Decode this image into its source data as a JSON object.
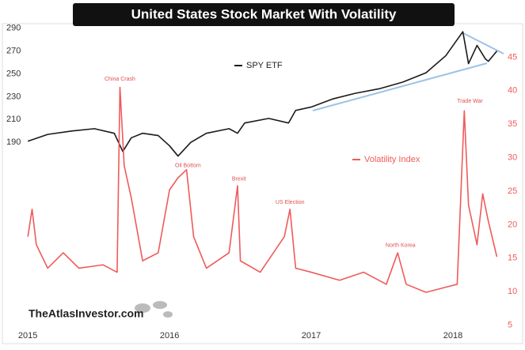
{
  "chart_data": {
    "type": "line",
    "title": "United States Stock Market With Volatility",
    "watermark": "TheAtlasInvestor.com",
    "xlim": [
      2014.96,
      2018.38
    ],
    "xticks": [
      2015,
      2016,
      2017,
      2018
    ],
    "ylim": [
      24,
      294
    ],
    "yticks": [
      190,
      210,
      230,
      250,
      270,
      290
    ],
    "y2lim": [
      4,
      50
    ],
    "y2ticks": [
      5,
      10,
      15,
      20,
      25,
      30,
      35,
      40,
      45
    ],
    "series": [
      {
        "name": "SPY ETF",
        "color": "#1a1a1a",
        "x": [
          2015.0,
          2015.14,
          2015.31,
          2015.47,
          2015.61,
          2015.64,
          2015.67,
          2015.73,
          2015.81,
          2015.92,
          2016.0,
          2016.06,
          2016.15,
          2016.26,
          2016.42,
          2016.48,
          2016.53,
          2016.7,
          2016.84,
          2016.89,
          2017.0,
          2017.15,
          2017.31,
          2017.48,
          2017.65,
          2017.81,
          2017.95,
          2018.03,
          2018.07,
          2018.11,
          2018.17,
          2018.23,
          2018.25,
          2018.31
        ],
        "values": [
          191,
          197,
          200,
          202,
          198,
          190,
          182,
          194,
          198,
          196,
          187,
          178,
          190,
          198,
          202,
          198,
          207,
          211,
          207,
          218,
          221,
          228,
          233,
          237,
          243,
          251,
          266,
          280,
          287,
          259,
          275,
          263,
          261,
          270
        ]
      },
      {
        "name": "Volatility Index",
        "color": "#f05a5a",
        "axis": "y2",
        "x": [
          2015.0,
          2015.03,
          2015.06,
          2015.14,
          2015.25,
          2015.36,
          2015.53,
          2015.63,
          2015.65,
          2015.68,
          2015.73,
          2015.81,
          2015.92,
          2016.0,
          2016.06,
          2016.12,
          2016.17,
          2016.26,
          2016.42,
          2016.48,
          2016.5,
          2016.64,
          2016.81,
          2016.85,
          2016.89,
          2017.0,
          2017.2,
          2017.37,
          2017.53,
          2017.61,
          2017.67,
          2017.81,
          2017.92,
          2018.03,
          2018.08,
          2018.11,
          2018.17,
          2018.21,
          2018.25,
          2018.31
        ],
        "values": [
          18.2,
          22.3,
          17,
          13.5,
          15.8,
          13.5,
          14,
          12.9,
          40.5,
          28.8,
          24,
          14.6,
          15.8,
          25.2,
          27,
          28.2,
          18.2,
          13.5,
          15.8,
          25.8,
          14.6,
          12.9,
          18.2,
          22.3,
          13.5,
          12.9,
          11.7,
          12.9,
          11.1,
          15.8,
          11.1,
          9.9,
          10.5,
          11.1,
          37,
          22.9,
          17,
          24.6,
          20.5,
          15.2
        ]
      }
    ],
    "annotations": [
      {
        "text": "China Crash",
        "x": 2015.65,
        "y": 41.7
      },
      {
        "text": "Oil Bottom",
        "x": 2016.13,
        "y": 28.8
      },
      {
        "text": "Brexit",
        "x": 2016.49,
        "y": 26.8
      },
      {
        "text": "US Election",
        "x": 2016.85,
        "y": 23.3
      },
      {
        "text": "North Korea",
        "x": 2017.63,
        "y": 16.9
      },
      {
        "text": "Trade War",
        "x": 2018.12,
        "y": 38.4
      }
    ]
  }
}
